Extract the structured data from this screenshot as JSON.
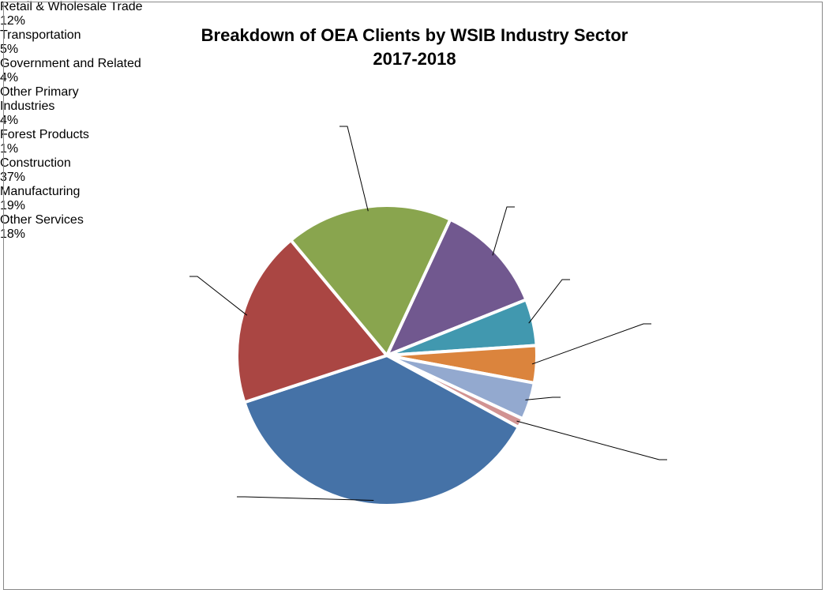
{
  "chart_data": {
    "type": "pie",
    "title": "Breakdown of OEA Clients by WSIB Industry Sector",
    "subtitle": "2017-2018",
    "categories": [
      "Retail & Wholesale Trade",
      "Transportation",
      "Government and Related",
      "Other Primary Industries",
      "Forest Products",
      "Construction",
      "Manufacturing",
      "Other Services"
    ],
    "values": [
      12,
      5,
      4,
      4,
      1,
      37,
      19,
      18
    ],
    "value_labels": [
      "12%",
      "5%",
      "4%",
      "4%",
      "1%",
      "37%",
      "19%",
      "18%"
    ],
    "colors": [
      "#71588f",
      "#4198af",
      "#db843d",
      "#93a9cf",
      "#d19392",
      "#4572a7",
      "#aa4643",
      "#89a54e"
    ]
  }
}
